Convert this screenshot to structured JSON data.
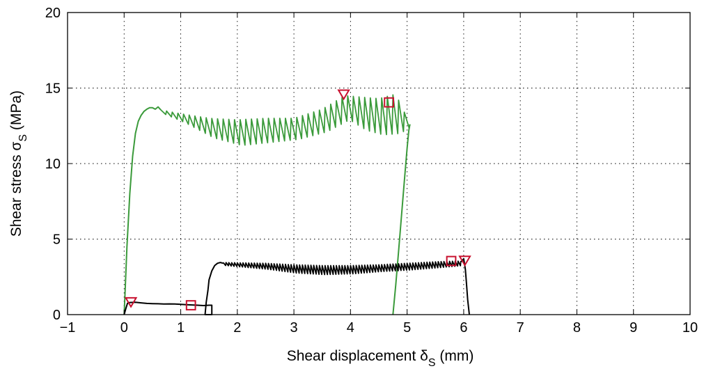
{
  "chart_data": {
    "type": "line",
    "xlabel": "Shear displacement δ",
    "xlabel_sub": "S",
    "xlabel_unit": " (mm)",
    "ylabel": "Shear stress σ",
    "ylabel_sub": "S",
    "ylabel_unit": " (MPa)",
    "xlim": [
      -1,
      10
    ],
    "ylim": [
      0,
      20
    ],
    "xticks": [
      -1,
      0,
      1,
      2,
      3,
      4,
      5,
      6,
      7,
      8,
      9,
      10
    ],
    "xtick_labels": [
      "−1",
      "0",
      "1",
      "2",
      "3",
      "4",
      "5",
      "6",
      "7",
      "8",
      "9",
      "10"
    ],
    "yticks": [
      0,
      5,
      10,
      15,
      20
    ],
    "ytick_labels": [
      "0",
      "5",
      "10",
      "15",
      "20"
    ],
    "grid": true,
    "series": [
      {
        "color": "#3a9a3a",
        "segments": [
          {
            "x": [
              0.0,
              0.05,
              0.1,
              0.15,
              0.2,
              0.25,
              0.3,
              0.35,
              0.4,
              0.45,
              0.5,
              0.55,
              0.6,
              0.65
            ],
            "y": [
              0.0,
              4.5,
              8.0,
              10.5,
              12.0,
              12.8,
              13.2,
              13.45,
              13.6,
              13.7,
              13.7,
              13.6,
              13.75,
              13.55
            ]
          },
          {
            "x": [
              4.75,
              4.8,
              4.85,
              4.9,
              4.95,
              5.0,
              5.03,
              5.05
            ],
            "y": [
              0.0,
              2.0,
              4.2,
              6.5,
              8.8,
              11.0,
              12.2,
              12.6
            ]
          }
        ],
        "oscillation": {
          "x_start": 0.65,
          "x_end": 5.05,
          "step": 0.1,
          "peaks_x": [
            0.65,
            1.0,
            1.5,
            2.0,
            2.5,
            3.0,
            3.5,
            3.9,
            4.2,
            4.5,
            4.8,
            5.05
          ],
          "peaks_y": [
            13.55,
            13.3,
            13.0,
            12.9,
            13.0,
            13.0,
            13.6,
            14.5,
            14.4,
            14.3,
            14.6,
            12.6
          ],
          "trough_depth": [
            0.3,
            0.6,
            1.3,
            1.7,
            1.6,
            1.4,
            1.5,
            1.6,
            2.2,
            2.4,
            2.6,
            0.0
          ]
        }
      },
      {
        "color": "#000000",
        "segments": [
          {
            "x": [
              0.0,
              0.03,
              0.06,
              0.1,
              0.2,
              0.3,
              0.4,
              0.5,
              0.6,
              0.7,
              0.8,
              0.9,
              1.0,
              1.1,
              1.2,
              1.3,
              1.4,
              1.5,
              1.55,
              1.55,
              1.43,
              1.45,
              1.48,
              1.5,
              1.55,
              1.6,
              1.65,
              1.7,
              1.75
            ],
            "y": [
              0.0,
              0.4,
              0.75,
              0.8,
              0.82,
              0.78,
              0.74,
              0.73,
              0.72,
              0.7,
              0.71,
              0.7,
              0.68,
              0.66,
              0.64,
              0.62,
              0.6,
              0.62,
              0.62,
              0.0,
              0.0,
              0.8,
              1.6,
              2.3,
              2.9,
              3.25,
              3.4,
              3.45,
              3.4
            ]
          },
          {
            "x": [
              5.95,
              5.98,
              6.0,
              6.03,
              6.05,
              6.07,
              6.1
            ],
            "y": [
              3.5,
              3.6,
              3.7,
              3.0,
              2.0,
              1.0,
              0.0
            ]
          }
        ],
        "oscillation": {
          "x_start": 1.75,
          "x_end": 5.95,
          "step": 0.05,
          "peaks_x": [
            1.75,
            2.5,
            3.0,
            3.5,
            4.0,
            4.5,
            5.0,
            5.5,
            5.95
          ],
          "peaks_y": [
            3.45,
            3.4,
            3.3,
            3.25,
            3.25,
            3.3,
            3.4,
            3.5,
            3.55
          ],
          "trough_depth": [
            0.2,
            0.4,
            0.55,
            0.6,
            0.55,
            0.45,
            0.45,
            0.4,
            0.3
          ]
        }
      }
    ],
    "markers": [
      {
        "shape": "triangle-down",
        "x": 0.12,
        "y": 0.85,
        "color": "#c8102e"
      },
      {
        "shape": "square",
        "x": 1.18,
        "y": 0.62,
        "color": "#c8102e"
      },
      {
        "shape": "triangle-down",
        "x": 3.88,
        "y": 14.6,
        "color": "#c8102e"
      },
      {
        "shape": "square",
        "x": 4.68,
        "y": 14.05,
        "color": "#c8102e"
      },
      {
        "shape": "square",
        "x": 5.78,
        "y": 3.55,
        "color": "#c8102e"
      },
      {
        "shape": "triangle-down",
        "x": 6.02,
        "y": 3.6,
        "color": "#c8102e"
      }
    ]
  }
}
